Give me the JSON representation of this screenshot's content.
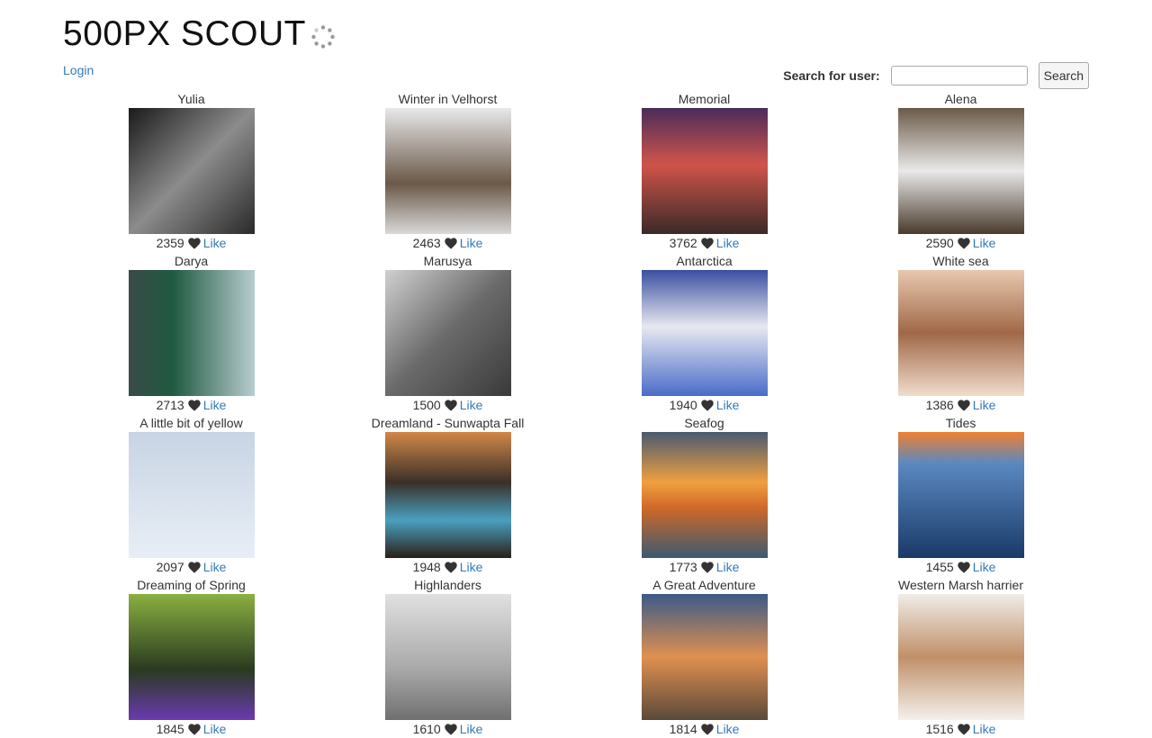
{
  "header": {
    "title": "500PX SCOUT",
    "login_label": "Login"
  },
  "search": {
    "label": "Search for user:",
    "value": "",
    "button_label": "Search"
  },
  "like_label": "Like",
  "photos": [
    {
      "title": "Yulia",
      "likes": "2359"
    },
    {
      "title": "Winter in Velhorst",
      "likes": "2463"
    },
    {
      "title": "Memorial",
      "likes": "3762"
    },
    {
      "title": "Alena",
      "likes": "2590"
    },
    {
      "title": "Darya",
      "likes": "2713"
    },
    {
      "title": "Marusya",
      "likes": "1500"
    },
    {
      "title": "Antarctica",
      "likes": "1940"
    },
    {
      "title": "White sea",
      "likes": "1386"
    },
    {
      "title": "A little bit of yellow",
      "likes": "2097"
    },
    {
      "title": "Dreamland - Sunwapta Fall",
      "likes": "1948"
    },
    {
      "title": "Seafog",
      "likes": "1773"
    },
    {
      "title": "Tides",
      "likes": "1455"
    },
    {
      "title": "Dreaming of Spring",
      "likes": "1845"
    },
    {
      "title": "Highlanders",
      "likes": "1610"
    },
    {
      "title": "A Great Adventure",
      "likes": "1814"
    },
    {
      "title": "Western Marsh harrier",
      "likes": "1516"
    }
  ]
}
